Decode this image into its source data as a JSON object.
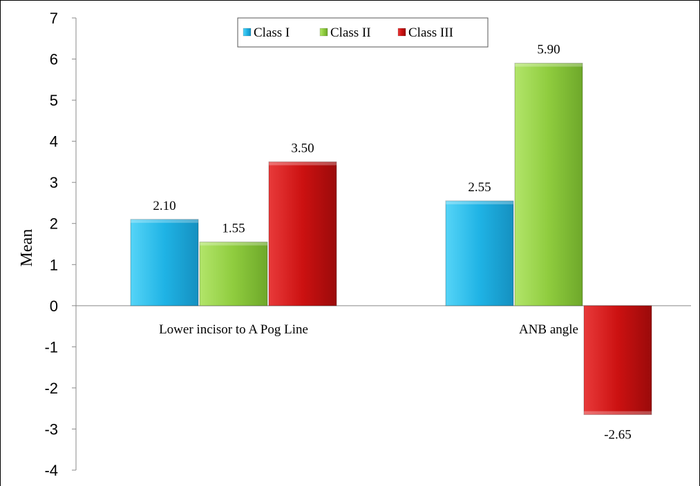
{
  "chart_data": {
    "type": "bar",
    "categories": [
      "Lower incisor to A Pog Line",
      "ANB angle"
    ],
    "series": [
      {
        "name": "Class I",
        "values": [
          2.1,
          2.55
        ],
        "color": "#1fb3e5"
      },
      {
        "name": "Class II",
        "values": [
          1.55,
          5.9
        ],
        "color": "#8fcc3e"
      },
      {
        "name": "Class III",
        "values": [
          3.5,
          -2.65
        ],
        "color": "#cc1111"
      }
    ],
    "data_labels": [
      [
        "2.10",
        "2.55"
      ],
      [
        "1.55",
        "5.90"
      ],
      [
        "3.50",
        "-2.65"
      ]
    ],
    "ylabel": "Mean",
    "xlabel": "",
    "title": "",
    "ylim": [
      -4,
      7
    ],
    "yticks": [
      -4,
      -3,
      -2,
      -1,
      0,
      1,
      2,
      3,
      4,
      5,
      6,
      7
    ],
    "grid": false,
    "legend": "top-center"
  }
}
